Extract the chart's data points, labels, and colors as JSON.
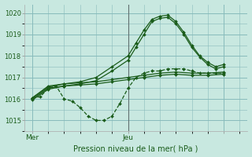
{
  "background_color": "#c8e8e0",
  "grid_color": "#88bbbb",
  "line_color": "#1a5c1a",
  "title": "Pression niveau de la mer( hPa )",
  "ylabel_ticks": [
    1015,
    1016,
    1017,
    1018,
    1019,
    1020
  ],
  "xlim": [
    0,
    56
  ],
  "ylim": [
    1014.6,
    1020.4
  ],
  "xtick_positions": [
    2,
    26,
    50
  ],
  "xtick_labels": [
    "Mer",
    "Jeu",
    ""
  ],
  "vline_x": 26,
  "series": [
    {
      "x": [
        2,
        4,
        6,
        8,
        10,
        12,
        14,
        16,
        18,
        20,
        22,
        24,
        26,
        28,
        30,
        32,
        34,
        36,
        38,
        40,
        42,
        44,
        46,
        48,
        50
      ],
      "y": [
        1016.05,
        1016.1,
        1016.5,
        1016.6,
        1016.0,
        1015.9,
        1015.6,
        1015.2,
        1015.0,
        1015.0,
        1015.2,
        1015.8,
        1016.5,
        1017.0,
        1017.2,
        1017.3,
        1017.3,
        1017.4,
        1017.4,
        1017.4,
        1017.3,
        1017.2,
        1017.2,
        1017.2,
        1017.2
      ],
      "marker": "D",
      "markersize": 2.0,
      "linewidth": 0.9,
      "linestyle": "--"
    },
    {
      "x": [
        2,
        6,
        10,
        14,
        18,
        22,
        26,
        28,
        30,
        32,
        34,
        36,
        38,
        40,
        42,
        44,
        46,
        48,
        50
      ],
      "y": [
        1016.05,
        1016.55,
        1016.7,
        1016.8,
        1017.0,
        1017.5,
        1018.0,
        1018.6,
        1019.2,
        1019.7,
        1019.85,
        1019.9,
        1019.6,
        1019.1,
        1018.5,
        1018.0,
        1017.7,
        1017.5,
        1017.6
      ],
      "marker": "D",
      "markersize": 2.0,
      "linewidth": 0.9,
      "linestyle": "-"
    },
    {
      "x": [
        2,
        6,
        10,
        14,
        18,
        22,
        26,
        28,
        30,
        32,
        34,
        36,
        38,
        40,
        42,
        44,
        46,
        48,
        50
      ],
      "y": [
        1015.95,
        1016.45,
        1016.6,
        1016.7,
        1016.85,
        1017.3,
        1017.8,
        1018.4,
        1019.0,
        1019.6,
        1019.75,
        1019.8,
        1019.5,
        1019.0,
        1018.4,
        1017.95,
        1017.6,
        1017.4,
        1017.5
      ],
      "marker": "D",
      "markersize": 2.0,
      "linewidth": 0.9,
      "linestyle": "-"
    },
    {
      "x": [
        2,
        6,
        10,
        14,
        18,
        22,
        26,
        30,
        34,
        38,
        42,
        46,
        50
      ],
      "y": [
        1016.05,
        1016.6,
        1016.7,
        1016.75,
        1016.8,
        1016.9,
        1017.0,
        1017.1,
        1017.2,
        1017.25,
        1017.2,
        1017.2,
        1017.25
      ],
      "marker": "D",
      "markersize": 2.0,
      "linewidth": 0.9,
      "linestyle": "-"
    },
    {
      "x": [
        2,
        6,
        10,
        14,
        18,
        22,
        26,
        30,
        34,
        38,
        42,
        46,
        50
      ],
      "y": [
        1016.0,
        1016.5,
        1016.6,
        1016.65,
        1016.7,
        1016.8,
        1016.9,
        1017.0,
        1017.1,
        1017.15,
        1017.1,
        1017.1,
        1017.15
      ],
      "marker": "D",
      "markersize": 2.0,
      "linewidth": 0.9,
      "linestyle": "-"
    }
  ]
}
